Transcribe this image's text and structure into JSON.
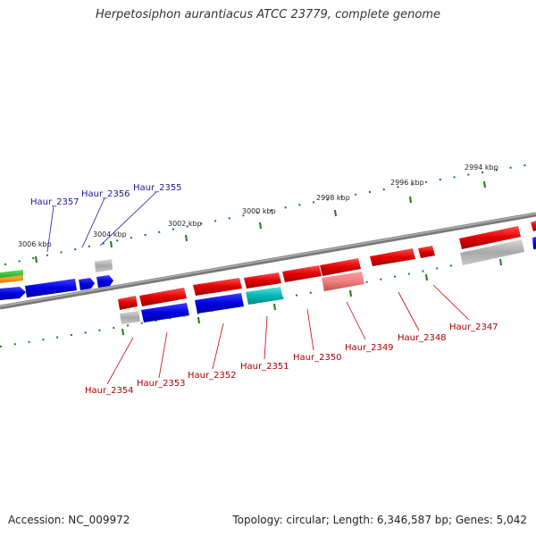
{
  "title": "Herpetosiphon aurantiacus ATCC 23779, complete genome",
  "footer": {
    "accession": "Accession: NC_009972",
    "summary": "Topology: circular; Length: 6,346,587 bp; Genes: 5,042"
  },
  "kbp_labels": [
    "3006 kbp",
    "3004 kbp",
    "3002 kbp",
    "3000 kbp",
    "2998 kbp",
    "2996 kbp",
    "2994 kbp"
  ],
  "gene_labels_top": [
    "Haur_2357",
    "Haur_2356",
    "Haur_2355"
  ],
  "gene_labels_bottom": [
    "Haur_2354",
    "Haur_2353",
    "Haur_2352",
    "Haur_2351",
    "Haur_2350",
    "Haur_2349",
    "Haur_2348",
    "Haur_2347"
  ],
  "colors": {
    "forward_gene": "#e00000",
    "reverse_gene": "#0000e0",
    "rna": "#00b8b8",
    "pseudogene": "#f08080",
    "cds_grey": "#a8a8a8",
    "backbone": "#808080",
    "tick": "#1a7a1a"
  }
}
